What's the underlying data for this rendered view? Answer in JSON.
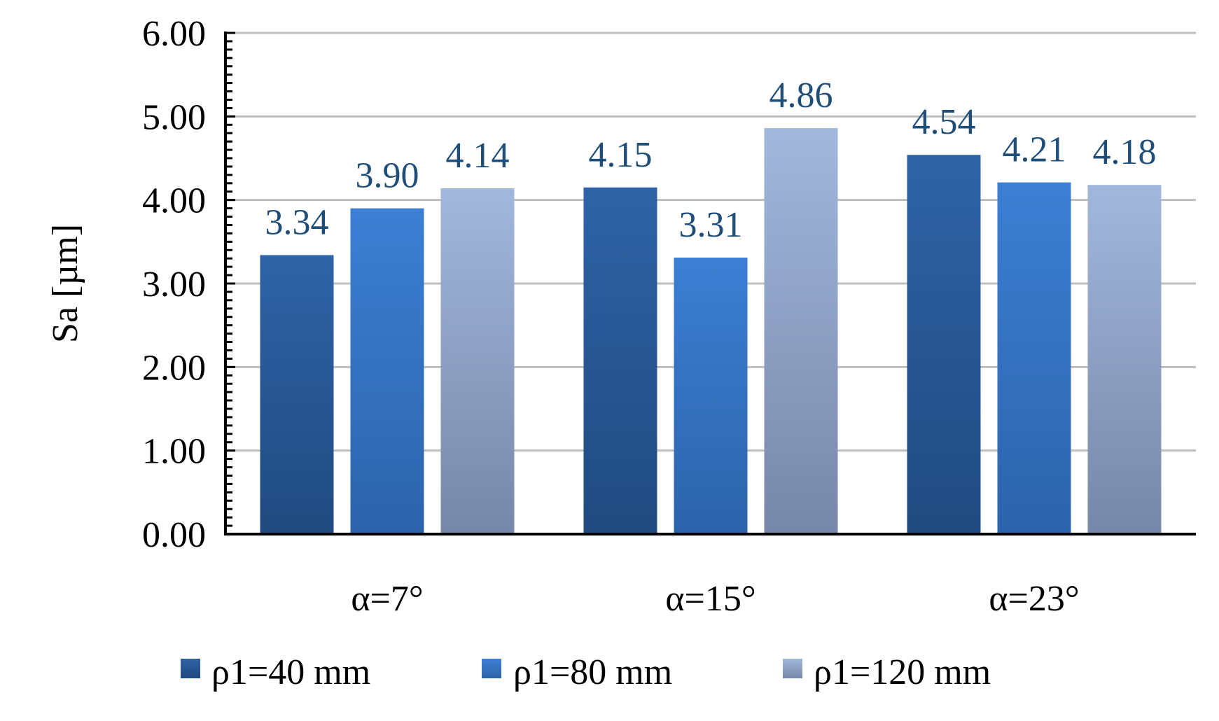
{
  "chart_data": {
    "type": "bar",
    "title": "",
    "xlabel": "",
    "ylabel": "Sa [µm]",
    "ylim": [
      0,
      6
    ],
    "yticks": [
      0,
      1,
      2,
      3,
      4,
      5,
      6
    ],
    "ytick_labels": [
      "0.00",
      "1.00",
      "2.00",
      "3.00",
      "4.00",
      "5.00",
      "6.00"
    ],
    "categories": [
      "α=7°",
      "α=15°",
      "α=23°"
    ],
    "series": [
      {
        "name": "ρ1=40 mm",
        "values": [
          3.34,
          4.15,
          4.54
        ],
        "labels": [
          "3.34",
          "4.15",
          "4.54"
        ],
        "color_top": "#2E63A6",
        "color_bottom": "#204A80"
      },
      {
        "name": "ρ1=80 mm",
        "values": [
          3.9,
          3.31,
          4.21
        ],
        "labels": [
          "3.90",
          "3.31",
          "4.21"
        ],
        "color_top": "#3C7FD3",
        "color_bottom": "#2C64AB"
      },
      {
        "name": "ρ1=120 mm",
        "values": [
          4.14,
          4.86,
          4.18
        ],
        "labels": [
          "4.14",
          "4.86",
          "4.18"
        ],
        "color_top": "#A2B7DD",
        "color_bottom": "#7688A8"
      }
    ],
    "grid": true,
    "legend_position": "bottom"
  }
}
